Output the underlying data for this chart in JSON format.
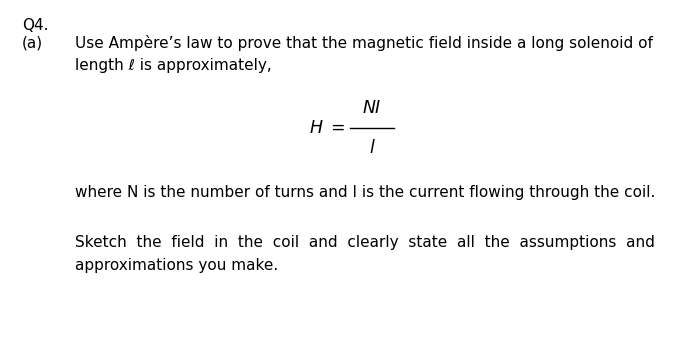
{
  "bg_color": "#ffffff",
  "q_label": "Q4.",
  "a_label": "(a)",
  "line1": "Use Ampère’s law to prove that the magnetic field inside a long solenoid of",
  "line2": "length ℓ is approximately,",
  "eq_lhs": "H =",
  "eq_num": "NI",
  "eq_den": "l",
  "line3": "where N is the number of turns and I is the current flowing through the coil.",
  "line4": "Sketch  the  field  in  the  coil  and  clearly  state  all  the  assumptions  and",
  "line5": "approximations you make.",
  "font_size": 11.0,
  "font_size_eq": 12.5
}
